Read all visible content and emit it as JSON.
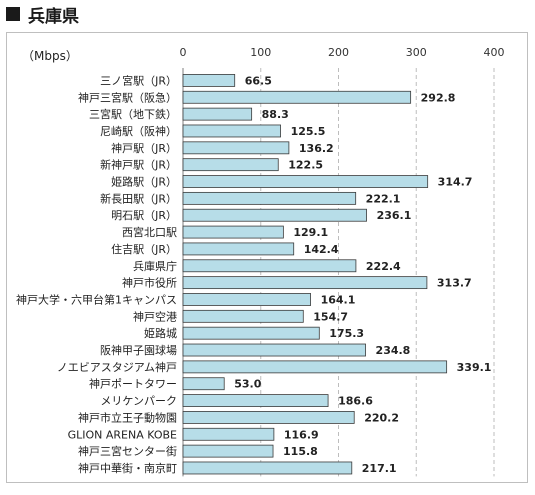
{
  "header": {
    "title": "兵庫県"
  },
  "chart_data": {
    "type": "bar",
    "orientation": "horizontal",
    "unit": "（Mbps）",
    "xlim": [
      0,
      400
    ],
    "ticks": [
      0,
      100,
      200,
      300,
      400
    ],
    "grid": true,
    "bar_color": "#b7dde8",
    "bar_edge_color": "#3b3b3b",
    "categories": [
      "三ノ宮駅（JR）",
      "神戸三宮駅（阪急）",
      "三宮駅（地下鉄）",
      "尼崎駅（阪神）",
      "神戸駅（JR）",
      "新神戸駅（JR）",
      "姫路駅（JR）",
      "新長田駅（JR）",
      "明石駅（JR）",
      "西宮北口駅",
      "住吉駅（JR）",
      "兵庫県庁",
      "神戸市役所",
      "神戸大学・六甲台第1キャンパス",
      "神戸空港",
      "姫路城",
      "阪神甲子園球場",
      "ノエビアスタジアム神戸",
      "神戸ポートタワー",
      "メリケンパーク",
      "神戸市立王子動物園",
      "GLION ARENA KOBE",
      "神戸三宮センター街",
      "神戸中華街・南京町"
    ],
    "values": [
      66.5,
      292.8,
      88.3,
      125.5,
      136.2,
      122.5,
      314.7,
      222.1,
      236.1,
      129.1,
      142.4,
      222.4,
      313.7,
      164.1,
      154.7,
      175.3,
      234.8,
      339.1,
      53.0,
      186.6,
      220.2,
      116.9,
      115.8,
      217.1
    ],
    "value_labels": [
      "66.5",
      "292.8",
      "88.3",
      "125.5",
      "136.2",
      "122.5",
      "314.7",
      "222.1",
      "236.1",
      "129.1",
      "142.4",
      "222.4",
      "313.7",
      "164.1",
      "154.7",
      "175.3",
      "234.8",
      "339.1",
      "53.0",
      "186.6",
      "220.2",
      "116.9",
      "115.8",
      "217.1"
    ]
  }
}
